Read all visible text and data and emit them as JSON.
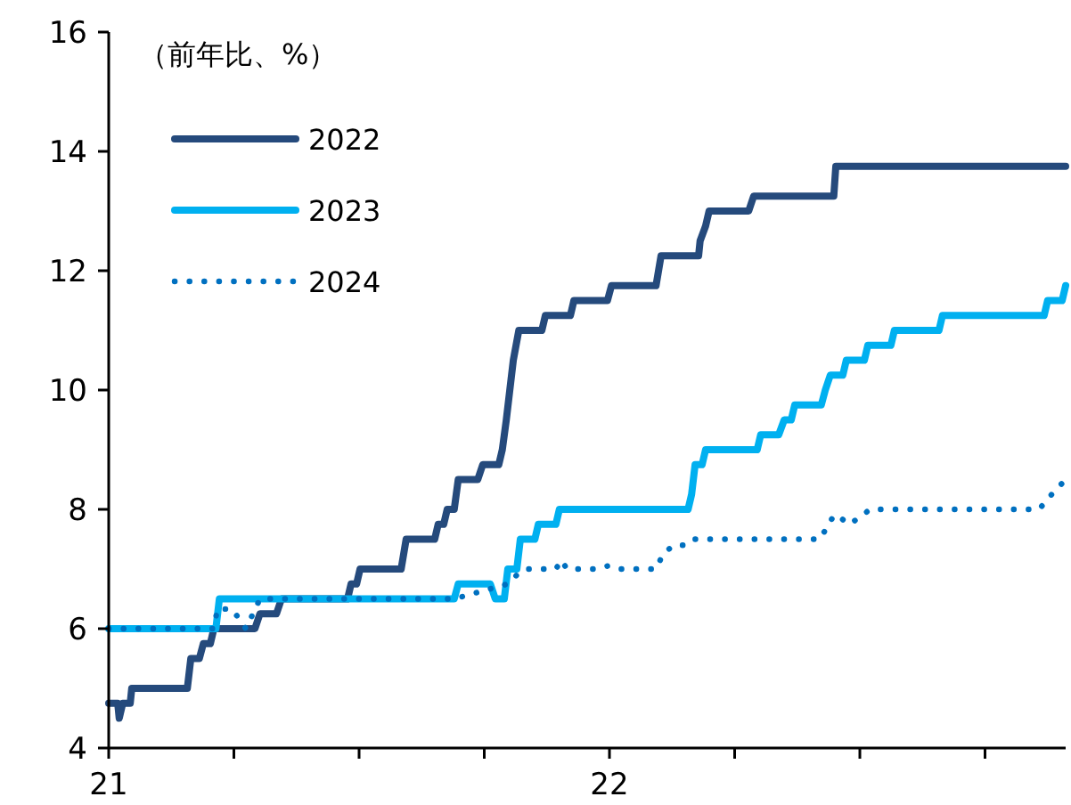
{
  "chart_data": {
    "type": "line",
    "ylabel": "（前年比、%）",
    "xlim": [
      21,
      22.911
    ],
    "ylim": [
      4,
      16
    ],
    "xticks": [
      21,
      {
        "value": 21.25,
        "label": null
      },
      {
        "value": 21.5,
        "label": null
      },
      {
        "value": 21.75,
        "label": null
      },
      22,
      {
        "value": 22.25,
        "label": null
      },
      {
        "value": 22.5,
        "label": null
      },
      {
        "value": 22.75,
        "label": null
      }
    ],
    "yticks": [
      4,
      6,
      8,
      10,
      12,
      14,
      16
    ],
    "grid": false,
    "legend": "top left",
    "marker": "none",
    "series": [
      {
        "name": "2022",
        "color": "#254a7c",
        "line_style": "solid",
        "x": [
          21.0,
          21.018,
          21.021,
          21.028,
          21.043,
          21.046,
          21.157,
          21.164,
          21.181,
          21.189,
          21.203,
          21.21,
          21.292,
          21.302,
          21.335,
          21.345,
          21.477,
          21.484,
          21.495,
          21.502,
          21.584,
          21.594,
          21.651,
          21.658,
          21.669,
          21.676,
          21.69,
          21.698,
          21.737,
          21.747,
          21.779,
          21.786,
          21.794,
          21.801,
          21.808,
          21.819,
          21.865,
          21.872,
          21.922,
          21.929,
          21.996,
          22.004,
          22.093,
          22.103,
          22.178,
          22.181,
          22.192,
          22.199,
          22.278,
          22.288,
          22.448,
          22.452,
          22.911
        ],
        "values": [
          4.75,
          4.75,
          4.5,
          4.75,
          4.75,
          5.0,
          5.0,
          5.5,
          5.5,
          5.75,
          5.75,
          6.0,
          6.0,
          6.25,
          6.25,
          6.5,
          6.5,
          6.75,
          6.75,
          7.0,
          7.0,
          7.5,
          7.5,
          7.75,
          7.75,
          8.0,
          8.0,
          8.5,
          8.5,
          8.75,
          8.75,
          9.0,
          9.5,
          10.0,
          10.5,
          11.0,
          11.0,
          11.25,
          11.25,
          11.5,
          11.5,
          11.75,
          11.75,
          12.25,
          12.25,
          12.5,
          12.75,
          13.0,
          13.0,
          13.25,
          13.25,
          13.75,
          13.75
        ]
      },
      {
        "name": "2023",
        "color": "#00b0f0",
        "line_style": "solid",
        "x": [
          21.0,
          21.214,
          21.221,
          21.69,
          21.698,
          21.762,
          21.772,
          21.79,
          21.797,
          21.815,
          21.822,
          21.851,
          21.858,
          21.893,
          21.9,
          22.157,
          22.164,
          22.171,
          22.185,
          22.192,
          22.295,
          22.302,
          22.338,
          22.349,
          22.363,
          22.37,
          22.423,
          22.431,
          22.441,
          22.466,
          22.473,
          22.509,
          22.516,
          22.562,
          22.569,
          22.658,
          22.665,
          22.868,
          22.875,
          22.904,
          22.911
        ],
        "values": [
          6.0,
          6.0,
          6.5,
          6.5,
          6.75,
          6.75,
          6.5,
          6.5,
          7.0,
          7.0,
          7.5,
          7.5,
          7.75,
          7.75,
          8.0,
          8.0,
          8.25,
          8.75,
          8.75,
          9.0,
          9.0,
          9.25,
          9.25,
          9.5,
          9.5,
          9.75,
          9.75,
          10.0,
          10.25,
          10.25,
          10.5,
          10.5,
          10.75,
          10.75,
          11.0,
          11.0,
          11.25,
          11.25,
          11.5,
          11.5,
          11.75
        ]
      },
      {
        "name": "2024",
        "color": "#0070c0",
        "line_style": "dotted",
        "x": [
          21.0,
          21.21,
          21.217,
          21.246,
          21.26,
          21.274,
          21.288,
          21.302,
          21.69,
          21.797,
          21.815,
          21.833,
          21.893,
          21.904,
          21.915,
          21.975,
          21.996,
          22.011,
          22.093,
          22.107,
          22.128,
          22.149,
          22.164,
          22.42,
          22.438,
          22.448,
          22.456,
          22.477,
          22.498,
          22.52,
          22.858,
          22.883,
          22.911
        ],
        "values": [
          6.0,
          6.0,
          6.33,
          6.33,
          6.17,
          6.0,
          6.25,
          6.5,
          6.5,
          6.75,
          6.9,
          7.0,
          7.0,
          7.15,
          7.0,
          7.0,
          7.05,
          7.0,
          7.0,
          7.25,
          7.4,
          7.4,
          7.5,
          7.5,
          7.75,
          7.9,
          7.9,
          7.75,
          7.85,
          8.0,
          8.0,
          8.25,
          8.5
        ]
      }
    ]
  }
}
